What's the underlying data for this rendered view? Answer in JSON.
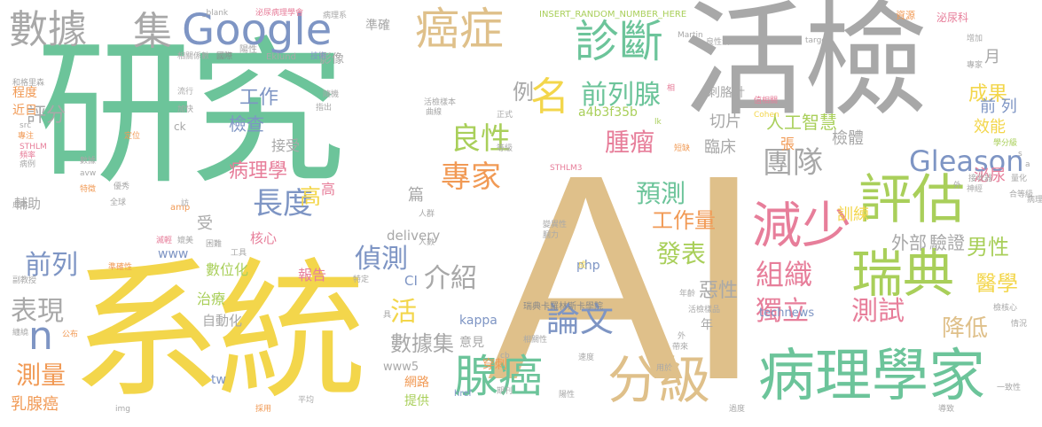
{
  "colors": {
    "teal": "#6cc49a",
    "gray": "#a8a8a8",
    "sand": "#dfc08a",
    "yellow": "#f3d64b",
    "blue": "#7e95c4",
    "orange": "#f19a55",
    "pink": "#e77e9a",
    "lime": "#a9cf5a",
    "darkgray": "#8a8a8a"
  },
  "words": [
    "研究",
    "活檢",
    "AI",
    "系統",
    "病理學家",
    "分級",
    "腺癌",
    "瑞典",
    "評估",
    "減少",
    "癌症",
    "診斷",
    "Google",
    "數據",
    "集",
    "名",
    "前列腺",
    "良性",
    "專家",
    "團隊",
    "組織",
    "獨立",
    "測試",
    "論文",
    "預測",
    "長度",
    "Gleason",
    "腫瘤",
    "n",
    "活",
    "病理學",
    "前列",
    "偵測",
    "介紹",
    "數據集",
    "表現",
    "測量",
    "乳腺癌",
    "發表",
    "工作量",
    "降低",
    "醫學",
    "男性",
    "外部",
    "驗證",
    "成果",
    "惡性",
    "工作",
    "檢查",
    "評分",
    "例",
    "檢體",
    "人工智慧",
    "臨床",
    "切片",
    "訓練",
    "泌尿",
    "效能",
    "前 列",
    "月",
    "張",
    "數位化",
    "治療",
    "報告",
    "自動化",
    "核心",
    "高",
    "篇",
    "接受",
    "delivery",
    "kappa",
    "www",
    "technews",
    "php",
    "CI",
    "意見",
    "年",
    "穿刺",
    "網路",
    "提供",
    "tw",
    "www5",
    "影像",
    "輔助",
    "程度",
    "近日",
    "準確",
    "瑞典卡羅林斯卡學院",
    "刺胳針",
    "a4b3f35b",
    "STHLM3",
    "INSERT_RANDOM_NUMBER_HERE",
    "_blank",
    "泌尿病理學會",
    "病理系",
    "資源",
    "泌尿科",
    "Eklund",
    "技術",
    "陽性",
    "國際",
    "相關係數",
    "和格里森",
    "流行",
    "加快",
    "隨機",
    "活檢樣本",
    "曲線",
    "指出",
    "專注",
    "定位",
    "src",
    "STHLM",
    "頻率",
    "病例",
    "數據",
    "成本",
    "特徵",
    "優秀",
    "全球",
    "amp",
    "avw",
    "cb",
    "href",
    "期刊",
    "img",
    "Martin",
    "target",
    "Cohen",
    "值相關",
    "外",
    "合等級",
    "量化",
    "神經",
    "接收器",
    "學分級",
    "公布",
    "纏繞",
    "副教授",
    "準確性",
    "滅輕",
    "媲美",
    "困難",
    "工具",
    "特定",
    "具",
    "人群",
    "人數",
    "膕力",
    "變異性",
    "等級",
    "短缺",
    "正式",
    "相",
    "lk",
    "ck",
    "受",
    "訪",
    "高",
    "一致性",
    "專家",
    "年齡",
    "活檢樣品",
    "檢核心",
    "情況",
    "導致",
    "過度",
    "採用",
    "平均",
    "陽性",
    "相關性",
    "用於",
    "帶來",
    "速度",
    "病理科",
    "s",
    "a",
    "成",
    "外",
    "良性活",
    "增加",
    "區域",
    "目前"
  ]
}
